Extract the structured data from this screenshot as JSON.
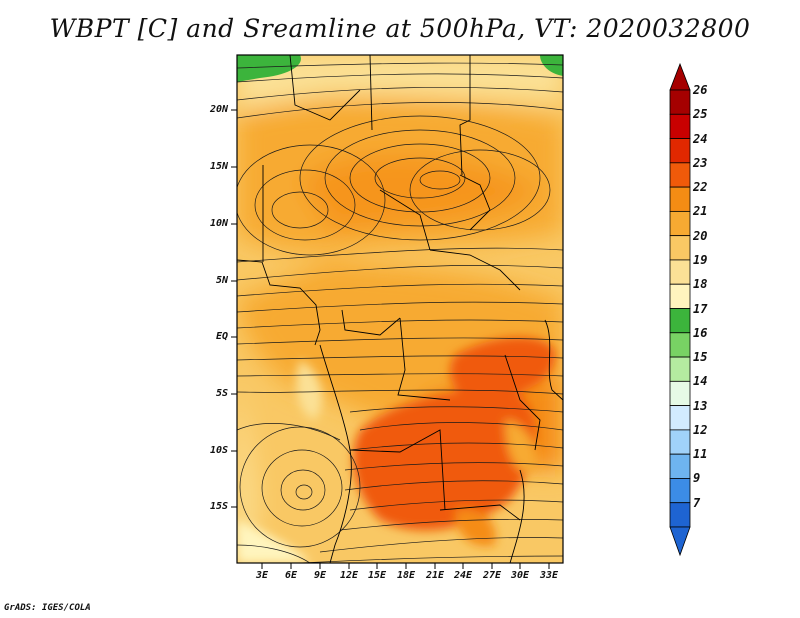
{
  "title": "WBPT [C] and Sreamline at 500hPa, VT: 2020032800",
  "credit": "GrADS: IGES/COLA",
  "map": {
    "lat_labels": [
      "20N",
      "15N",
      "10N",
      "5N",
      "EQ",
      "5S",
      "10S",
      "15S"
    ],
    "lon_labels": [
      "3E",
      "6E",
      "9E",
      "12E",
      "15E",
      "18E",
      "21E",
      "24E",
      "27E",
      "30E",
      "33E"
    ]
  },
  "colorbar": {
    "labels": [
      "26",
      "25",
      "24",
      "23",
      "22",
      "21",
      "20",
      "19",
      "18",
      "17",
      "16",
      "15",
      "14",
      "13",
      "12",
      "11",
      "9",
      "7"
    ],
    "colors": [
      "#a50000",
      "#c80000",
      "#e12800",
      "#f05a0a",
      "#f58c14",
      "#f7aa32",
      "#f9c864",
      "#fbe196",
      "#fff5be",
      "#3cb43c",
      "#78d264",
      "#b4eba0",
      "#e6fae6",
      "#d2ebff",
      "#a0d2fa",
      "#6eb4f0",
      "#3c8ce6",
      "#1e64d2"
    ]
  }
}
